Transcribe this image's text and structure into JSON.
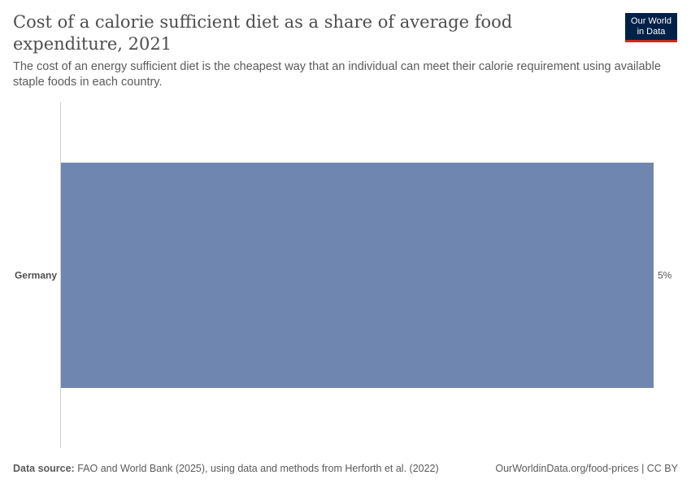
{
  "header": {
    "title": "Cost of a calorie sufficient diet as a share of average food expenditure, 2021",
    "subtitle": "The cost of an energy sufficient diet is the cheapest way that an individual can meet their calorie requirement using available staple foods in each country.",
    "logo_line1": "Our World",
    "logo_line2": "in Data"
  },
  "footer": {
    "source_label": "Data source:",
    "source_text": "FAO and World Bank (2025), using data and methods from Herforth et al. (2022)",
    "right_text": "OurWorldinData.org/food-prices | CC BY"
  },
  "colors": {
    "bar": "#6f87b0",
    "axis": "#d0d0d0",
    "logo_bg": "#002147",
    "logo_accent": "#ce261e"
  },
  "chart_data": {
    "type": "bar",
    "orientation": "horizontal",
    "categories": [
      "Germany"
    ],
    "values": [
      5
    ],
    "value_labels": [
      "5%"
    ],
    "xlim": [
      0,
      5
    ]
  }
}
